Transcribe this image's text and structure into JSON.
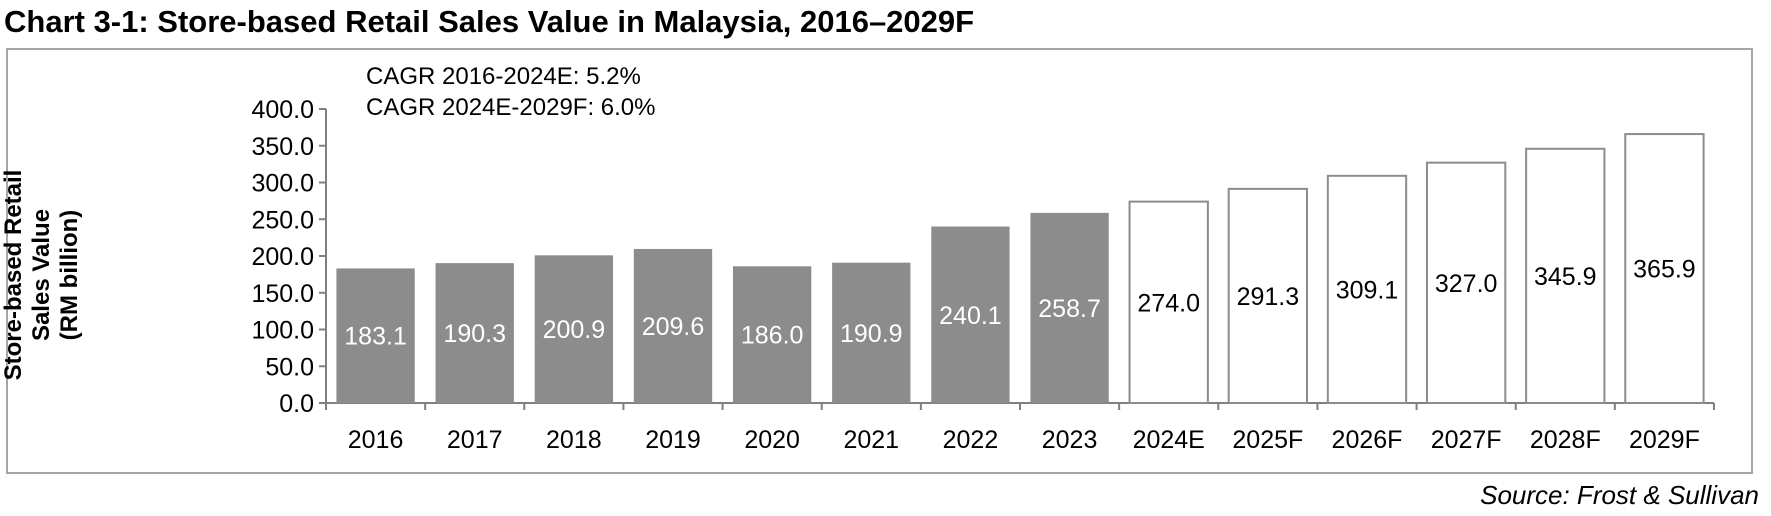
{
  "title": "Chart 3-1: Store-based Retail Sales Value in Malaysia, 2016–2029F",
  "source": "Source: Frost & Sullivan",
  "annotations": [
    "CAGR 2016-2024E: 5.2%",
    "CAGR 2024E-2029F: 6.0%"
  ],
  "colors": {
    "actual": "#8c8c8c",
    "forecast": "#ffffff",
    "forecast_border": "#8c8c8c",
    "axis": "#808080"
  },
  "chart_data": {
    "type": "bar",
    "title": "Chart 3-1: Store-based Retail Sales Value in Malaysia, 2016–2029F",
    "ylabel_lines": [
      "Store-based Retail",
      "Sales Value",
      "(RM billion)"
    ],
    "xlabel": "",
    "categories": [
      "2016",
      "2017",
      "2018",
      "2019",
      "2020",
      "2021",
      "2022",
      "2023",
      "2024E",
      "2025F",
      "2026F",
      "2027F",
      "2028F",
      "2029F"
    ],
    "values": [
      183.1,
      190.3,
      200.9,
      209.6,
      186.0,
      190.9,
      240.1,
      258.7,
      274.0,
      291.3,
      309.1,
      327.0,
      345.9,
      365.9
    ],
    "value_labels": [
      "183.1",
      "190.3",
      "200.9",
      "209.6",
      "186.0",
      "190.9",
      "240.1",
      "258.7",
      "274.0",
      "291.3",
      "309.1",
      "327.0",
      "345.9",
      "365.9"
    ],
    "series_kind": [
      "actual",
      "actual",
      "actual",
      "actual",
      "actual",
      "actual",
      "actual",
      "actual",
      "forecast",
      "forecast",
      "forecast",
      "forecast",
      "forecast",
      "forecast"
    ],
    "ylim": [
      0,
      400
    ],
    "yticks": [
      "0.0",
      "50.0",
      "100.0",
      "150.0",
      "200.0",
      "250.0",
      "300.0",
      "350.0",
      "400.0"
    ],
    "grid": false,
    "legend": "none"
  }
}
